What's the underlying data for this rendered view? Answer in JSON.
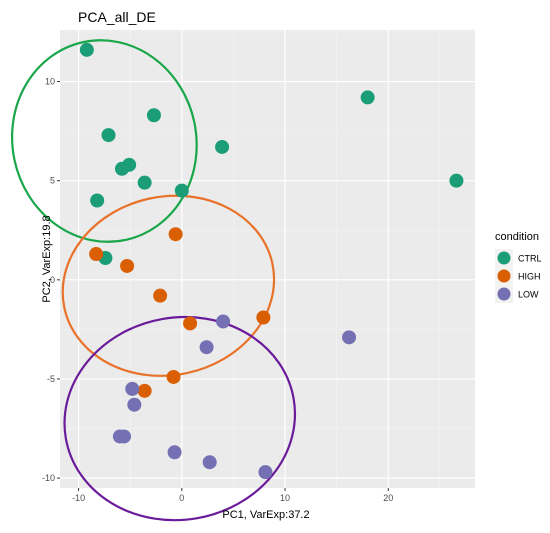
{
  "chart_data": {
    "type": "scatter",
    "title": "PCA_all_DE",
    "xlabel": "PC1, VarExp:37.2",
    "ylabel": "PC2, VarExp:19.8",
    "xlim": [
      -11.8,
      28.4
    ],
    "ylim": [
      -10.5,
      12.6
    ],
    "x_ticks": [
      -10,
      0,
      10,
      20
    ],
    "y_ticks": [
      -10,
      -5,
      0,
      5,
      10
    ],
    "x_tick_labels": [
      "-10",
      "0",
      "10",
      "20"
    ],
    "y_tick_labels": [
      "-10",
      "-5",
      "0",
      "5",
      "10"
    ],
    "grid": true,
    "legend": {
      "title": "condition",
      "position": "right"
    },
    "series": [
      {
        "name": "CTRL",
        "color": "#1b9e77",
        "points": [
          [
            -9.2,
            11.6
          ],
          [
            -7.1,
            7.3
          ],
          [
            -2.7,
            8.3
          ],
          [
            3.9,
            6.7
          ],
          [
            -5.1,
            5.8
          ],
          [
            -5.8,
            5.6
          ],
          [
            -3.6,
            4.9
          ],
          [
            0.0,
            4.5
          ],
          [
            -8.2,
            4.0
          ],
          [
            -7.4,
            1.1
          ],
          [
            18.0,
            9.2
          ],
          [
            26.6,
            5.0
          ]
        ]
      },
      {
        "name": "HIGH",
        "color": "#d95f02",
        "points": [
          [
            -0.6,
            2.3
          ],
          [
            -8.3,
            1.3
          ],
          [
            -5.3,
            0.7
          ],
          [
            -2.1,
            -0.8
          ],
          [
            0.8,
            -2.2
          ],
          [
            7.9,
            -1.9
          ],
          [
            -0.8,
            -4.9
          ],
          [
            -3.6,
            -5.6
          ]
        ]
      },
      {
        "name": "LOW",
        "color": "#7570b3",
        "points": [
          [
            4.0,
            -2.1
          ],
          [
            2.4,
            -3.4
          ],
          [
            16.2,
            -2.9
          ],
          [
            -4.8,
            -5.5
          ],
          [
            -4.6,
            -6.3
          ],
          [
            -5.6,
            -7.9
          ],
          [
            -6.0,
            -7.9
          ],
          [
            -0.7,
            -8.7
          ],
          [
            2.7,
            -9.2
          ],
          [
            8.1,
            -9.7
          ]
        ]
      }
    ],
    "ellipses": [
      {
        "condition": "CTRL",
        "color": "#1aa64a",
        "cx": -7.5,
        "cy": 7.0,
        "rx": 8.9,
        "ry": 5.1,
        "rotation_deg": -12
      },
      {
        "condition": "HIGH",
        "color": "#e8722a",
        "cx": -1.3,
        "cy": -0.3,
        "rx": 10.3,
        "ry": 4.5,
        "rotation_deg": -12
      },
      {
        "condition": "LOW",
        "color": "#6a1b9a",
        "cx": -0.2,
        "cy": -7.0,
        "rx": 11.2,
        "ry": 5.1,
        "rotation_deg": -10
      }
    ]
  }
}
